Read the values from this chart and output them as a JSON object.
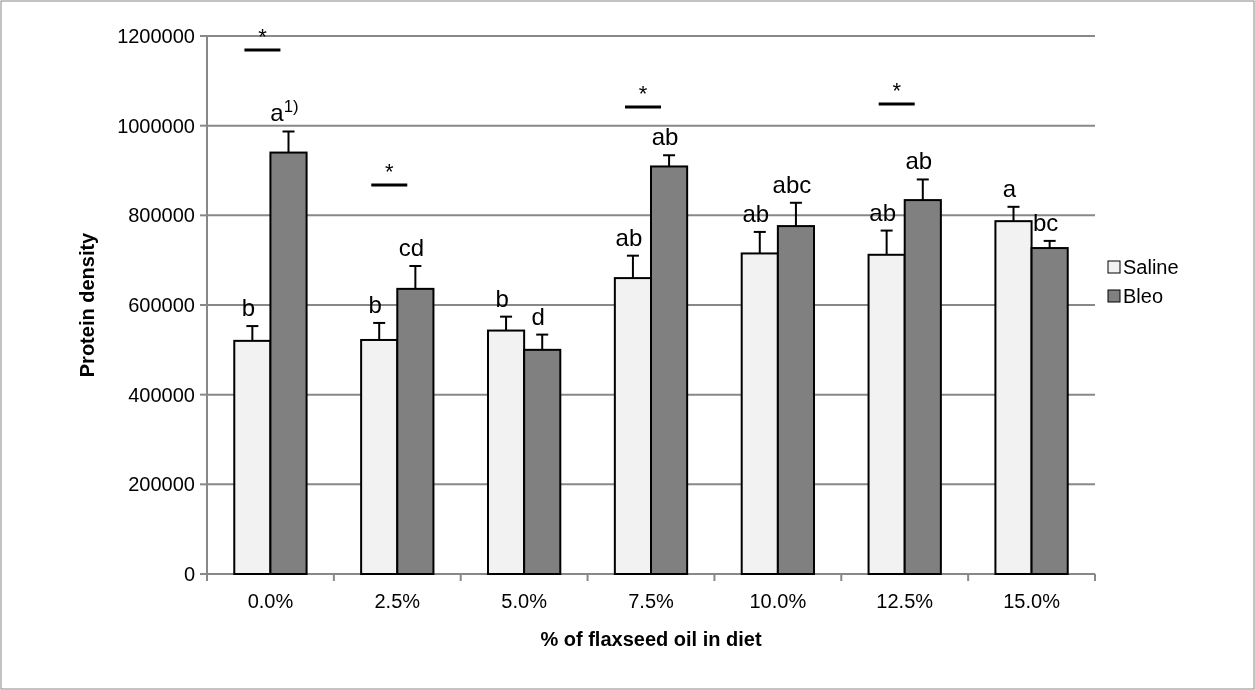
{
  "chart_data": {
    "type": "bar",
    "xlabel": "% of flaxseed oil in diet",
    "ylabel": "Protein density",
    "categories": [
      "0.0%",
      "2.5%",
      "5.0%",
      "7.5%",
      "10.0%",
      "12.5%",
      "15.0%"
    ],
    "series": [
      {
        "name": "Saline",
        "color": "#f2f2f2",
        "values": [
          520000,
          522000,
          543000,
          660000,
          715000,
          712000,
          787000
        ],
        "errors": [
          [
            520000,
            553000
          ],
          [
            522000,
            560000
          ],
          [
            543000,
            574000
          ],
          [
            660000,
            710000
          ],
          [
            715000,
            763000
          ],
          [
            712000,
            766000
          ],
          [
            787000,
            819000
          ]
        ]
      },
      {
        "name": "Bleo",
        "color": "#808080",
        "values": [
          940000,
          636000,
          500000,
          909000,
          776000,
          834000,
          727000
        ],
        "errors": [
          [
            940000,
            987000
          ],
          [
            636000,
            687000
          ],
          [
            500000,
            534000
          ],
          [
            909000,
            934000
          ],
          [
            776000,
            828000
          ],
          [
            834000,
            880000
          ],
          [
            727000,
            743000
          ]
        ]
      }
    ],
    "annotations": [
      "*",
      "*",
      "*",
      "*",
      {
        "text": "b",
        "x": "0.0%",
        "y": 520000
      },
      {
        "text": "b",
        "x": "2.5%",
        "y": 522000
      },
      {
        "text": "b",
        "x": "5.0%",
        "y": 543000
      },
      {
        "text": "ab",
        "x": "7.5%",
        "y": 660000
      },
      {
        "text": "ab",
        "x": "10.0%",
        "y": 715000
      },
      {
        "text": "ab",
        "x": "12.5%",
        "y": 712000
      },
      {
        "text": "a",
        "x": "15.0%",
        "y": 787000
      },
      {
        "text": "a$^{1)}$",
        "x": "0.0%",
        "y": 940000
      },
      {
        "text": "cd",
        "x": "2.5%",
        "y": 636000
      },
      {
        "text": "d",
        "x": "5.0%",
        "y": 500000
      },
      {
        "text": "ab",
        "x": "7.5%",
        "y": 909000
      },
      {
        "text": "abc",
        "x": "10.0%",
        "y": 776000
      },
      {
        "text": "ab",
        "x": "12.5%",
        "y": 834000
      },
      {
        "text": "bc",
        "x": "15.0%",
        "y": 727000
      }
    ],
    "ylim": [
      0,
      1200000
    ],
    "yticks": [
      0,
      200000,
      400000,
      600000,
      800000,
      1000000,
      1200000
    ],
    "grid": "y",
    "legend": "right"
  }
}
